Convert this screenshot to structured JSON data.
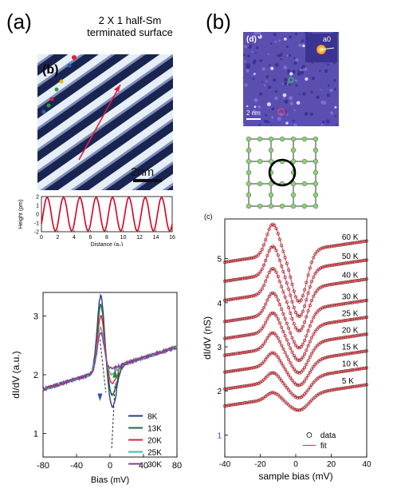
{
  "panel_a": {
    "letter": "(a)",
    "caption_line1": "2 X 1 half-Sm",
    "caption_line2": "terminated surface",
    "inset_letter": "(b)",
    "scale_label": "2nm"
  },
  "panel_b": {
    "letter": "(b)",
    "inset_letter": "(d)",
    "scale_label": "2 nm",
    "a0_label": "a0",
    "c_letter": "(c)"
  },
  "chart_data": [
    {
      "type": "line",
      "title": "",
      "xlabel": "Distance (a₀)",
      "ylabel": "Height (pm)",
      "xlim": [
        0,
        16
      ],
      "ylim": [
        -2,
        2
      ],
      "xticks": [
        "0",
        "2",
        "4",
        "6",
        "8",
        "10",
        "12",
        "14",
        "16"
      ],
      "yticks": [
        "-2",
        "-1",
        "0",
        "1",
        "2"
      ],
      "series": [
        {
          "period": 2,
          "amplitude": 1.9,
          "color": "#d8001f"
        }
      ]
    },
    {
      "type": "line",
      "xlabel": "Bias (mV)",
      "ylabel": "dI/dV (a.u.)",
      "xlim": [
        -80,
        80
      ],
      "ylim": [
        0.6,
        3.4
      ],
      "xticks": [
        "-80",
        "-40",
        "0",
        "40",
        "80"
      ],
      "yticks": [
        "1",
        "2",
        "3"
      ],
      "series": [
        {
          "name": "8K",
          "color": "#2b3b86",
          "peak": 3.35,
          "dip": 1.05
        },
        {
          "name": "13K",
          "color": "#1f6b3c",
          "peak": 3.2,
          "dip": 1.25
        },
        {
          "name": "20K",
          "color": "#e01f3d",
          "peak": 3.0,
          "dip": 1.45
        },
        {
          "name": "25K",
          "color": "#3fb8b0",
          "peak": 2.8,
          "dip": 1.6
        },
        {
          "name": "30K",
          "color": "#8a3a9a",
          "peak": 2.7,
          "dip": 1.7
        }
      ]
    },
    {
      "type": "scatter",
      "xlabel": "sample bias (mV)",
      "ylabel": "dI/dV (nS)",
      "xlim": [
        -40,
        40
      ],
      "ylim": [
        0.5,
        5.9
      ],
      "xticks": [
        "-40",
        "-20",
        "0",
        "20",
        "40"
      ],
      "yticks": [
        "1",
        "2",
        "3",
        "4",
        "5"
      ],
      "legend": [
        "data",
        "fit"
      ],
      "series": [
        {
          "name": "60 K",
          "offset": 5.3
        },
        {
          "name": "50 K",
          "offset": 4.85
        },
        {
          "name": "40 K",
          "offset": 4.4
        },
        {
          "name": "30 K",
          "offset": 3.9
        },
        {
          "name": "25 K",
          "offset": 3.5
        },
        {
          "name": "20 K",
          "offset": 3.1
        },
        {
          "name": "15 K",
          "offset": 2.7
        },
        {
          "name": "10 K",
          "offset": 2.3
        },
        {
          "name": "5 K",
          "offset": 1.9
        }
      ]
    }
  ]
}
